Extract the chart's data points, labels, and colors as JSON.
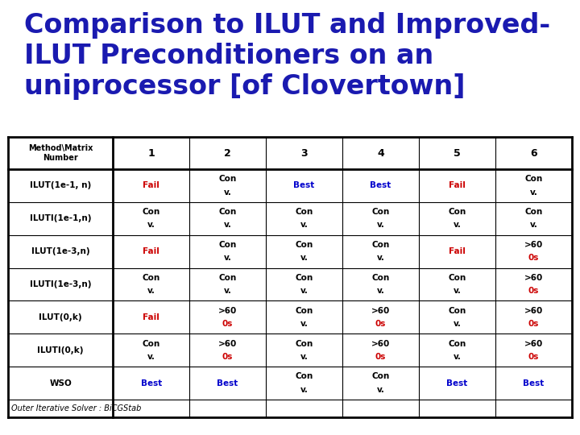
{
  "title_lines": [
    "Comparison to ILUT and Improved-",
    "ILUT Preconditioners on an",
    "uniprocessor [of Clovertown]"
  ],
  "title_color": "#1a1ab0",
  "title_fontsize": 24,
  "bg_color": "#ffffff",
  "footer_text": "Outer Iterative Solver : BiCGStab",
  "rows": [
    {
      "method": "ILUT(1e-1, n)",
      "cells": [
        {
          "line1": "",
          "line2": "Fail",
          "color2": "#cc0000"
        },
        {
          "line1": "Con",
          "line2": "v.",
          "color2": "#000000"
        },
        {
          "line1": "",
          "line2": "Best",
          "color2": "#0000cc"
        },
        {
          "line1": "",
          "line2": "Best",
          "color2": "#0000cc"
        },
        {
          "line1": "",
          "line2": "Fail",
          "color2": "#cc0000"
        },
        {
          "line1": "Con",
          "line2": "v.",
          "color2": "#000000"
        }
      ]
    },
    {
      "method": "ILUTI(1e-1,n)",
      "cells": [
        {
          "line1": "Con",
          "line2": "v.",
          "color2": "#000000"
        },
        {
          "line1": "Con",
          "line2": "v.",
          "color2": "#000000"
        },
        {
          "line1": "Con",
          "line2": "v.",
          "color2": "#000000"
        },
        {
          "line1": "Con",
          "line2": "v.",
          "color2": "#000000"
        },
        {
          "line1": "Con",
          "line2": "v.",
          "color2": "#000000"
        },
        {
          "line1": "Con",
          "line2": "v.",
          "color2": "#000000"
        }
      ]
    },
    {
      "method": "ILUT(1e-3,n)",
      "cells": [
        {
          "line1": "",
          "line2": "Fail",
          "color2": "#cc0000"
        },
        {
          "line1": "Con",
          "line2": "v.",
          "color2": "#000000"
        },
        {
          "line1": "Con",
          "line2": "v.",
          "color2": "#000000"
        },
        {
          "line1": "Con",
          "line2": "v.",
          "color2": "#000000"
        },
        {
          "line1": "",
          "line2": "Fail",
          "color2": "#cc0000"
        },
        {
          "line1": ">60",
          "line2": "0s",
          "color2": "#cc0000"
        }
      ]
    },
    {
      "method": "ILUTI(1e-3,n)",
      "cells": [
        {
          "line1": "Con",
          "line2": "v.",
          "color2": "#000000"
        },
        {
          "line1": "Con",
          "line2": "v.",
          "color2": "#000000"
        },
        {
          "line1": "Con",
          "line2": "v.",
          "color2": "#000000"
        },
        {
          "line1": "Con",
          "line2": "v.",
          "color2": "#000000"
        },
        {
          "line1": "Con",
          "line2": "v.",
          "color2": "#000000"
        },
        {
          "line1": ">60",
          "line2": "0s",
          "color2": "#cc0000"
        }
      ]
    },
    {
      "method": "ILUT(0,k)",
      "cells": [
        {
          "line1": "",
          "line2": "Fail",
          "color2": "#cc0000"
        },
        {
          "line1": ">60",
          "line2": "0s",
          "color2": "#cc0000"
        },
        {
          "line1": "Con",
          "line2": "v.",
          "color2": "#000000"
        },
        {
          "line1": ">60",
          "line2": "0s",
          "color2": "#cc0000"
        },
        {
          "line1": "Con",
          "line2": "v.",
          "color2": "#000000"
        },
        {
          "line1": ">60",
          "line2": "0s",
          "color2": "#cc0000"
        }
      ]
    },
    {
      "method": "ILUTI(0,k)",
      "cells": [
        {
          "line1": "Con",
          "line2": "v.",
          "color2": "#000000"
        },
        {
          "line1": ">60",
          "line2": "0s",
          "color2": "#cc0000"
        },
        {
          "line1": "Con",
          "line2": "v.",
          "color2": "#000000"
        },
        {
          "line1": ">60",
          "line2": "0s",
          "color2": "#cc0000"
        },
        {
          "line1": "Con",
          "line2": "v.",
          "color2": "#000000"
        },
        {
          "line1": ">60",
          "line2": "0s",
          "color2": "#cc0000"
        }
      ]
    },
    {
      "method": "WSO",
      "cells": [
        {
          "line1": "",
          "line2": "Best",
          "color2": "#0000cc"
        },
        {
          "line1": "",
          "line2": "Best",
          "color2": "#0000cc"
        },
        {
          "line1": "Con",
          "line2": "v.",
          "color2": "#000000"
        },
        {
          "line1": "Con",
          "line2": "v.",
          "color2": "#000000"
        },
        {
          "line1": "",
          "line2": "Best",
          "color2": "#0000cc"
        },
        {
          "line1": "",
          "line2": "Best",
          "color2": "#0000cc"
        }
      ]
    }
  ]
}
